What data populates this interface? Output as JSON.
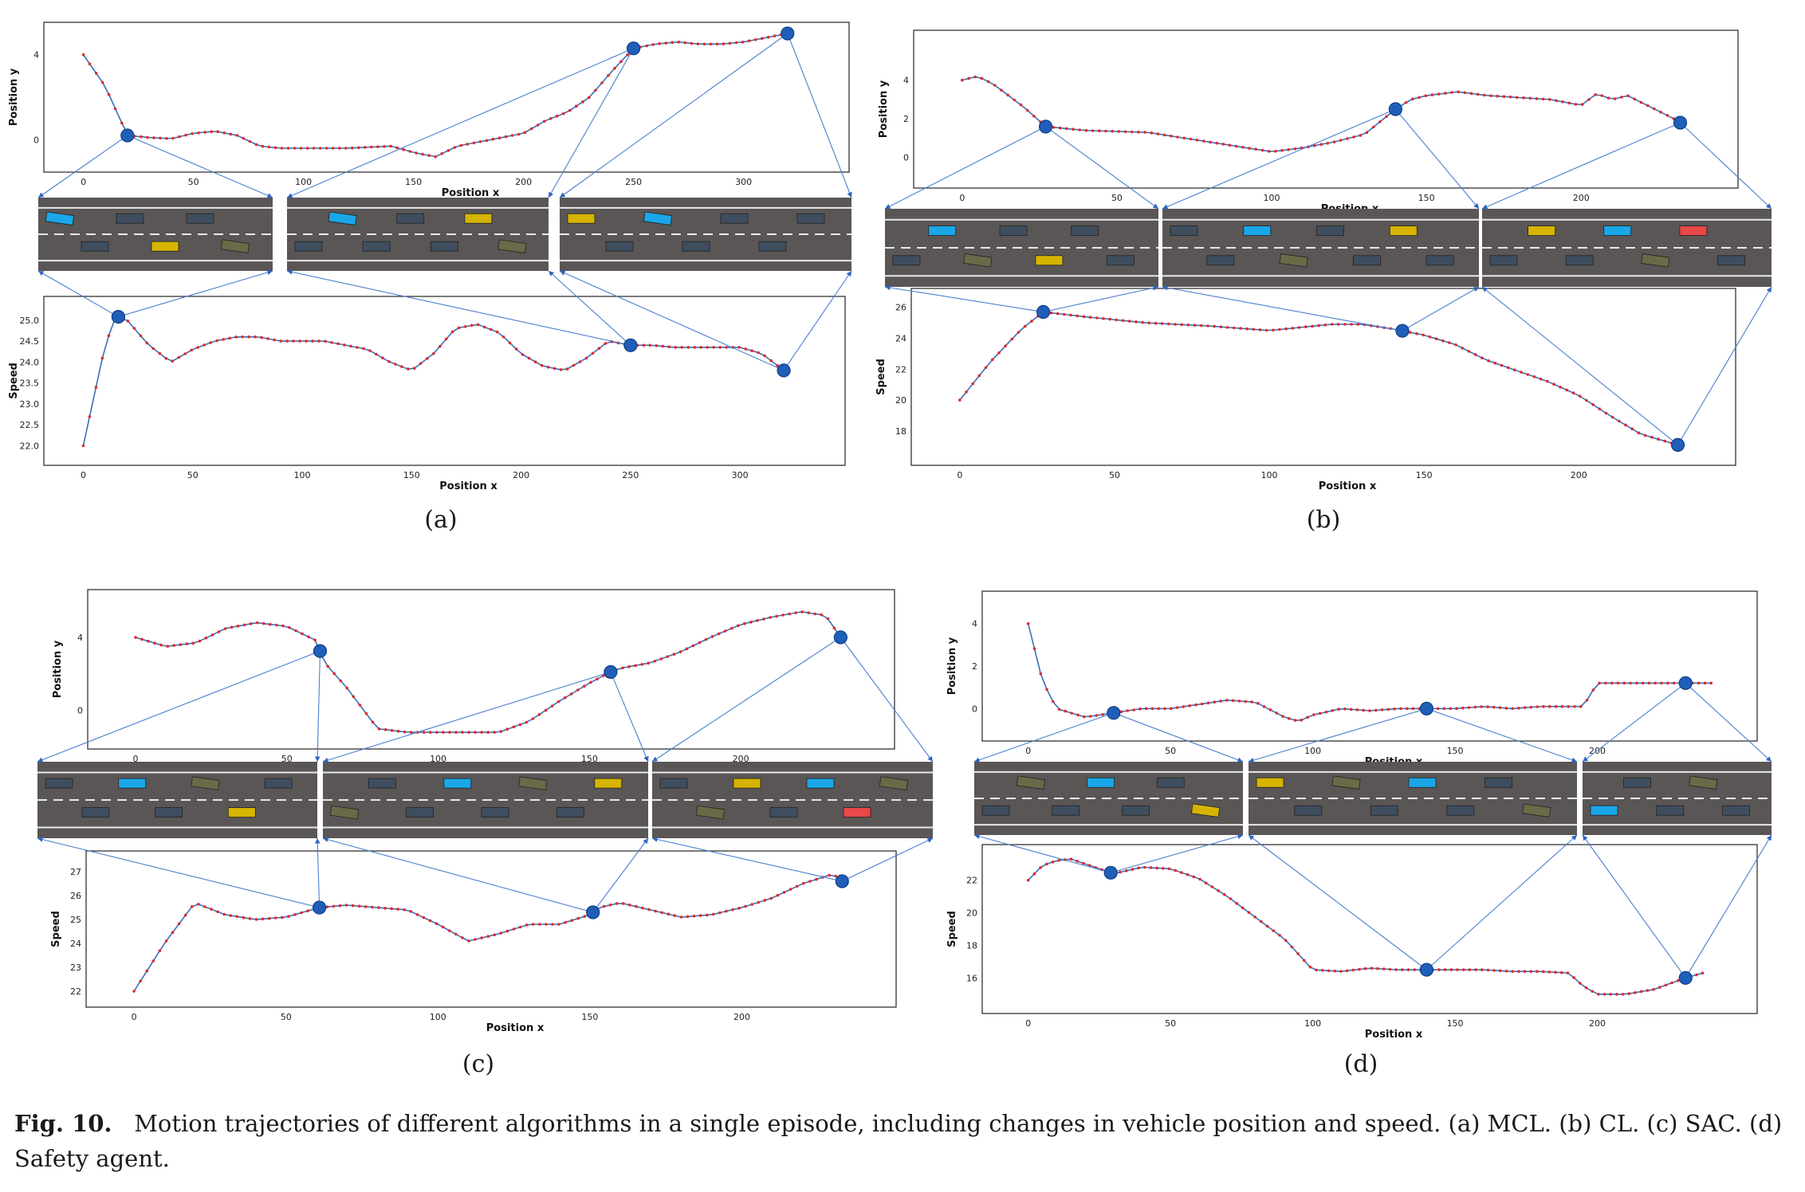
{
  "figure": {
    "caption_label": "Fig. 10.",
    "caption_text": "Motion trajectories of different algorithms in a single episode, including changes in vehicle position and speed. (a) MCL. (b) CL. (c) SAC. (d) Safety agent.",
    "colors": {
      "trajectory_line": "#3b6fb6",
      "trajectory_marker": "#e02a2a",
      "keypoint": "#1f5fb8",
      "road": "#5a5656",
      "ego_vehicle": "#1aa7e8",
      "other_vehicle": "#3f4e5e",
      "highlight_vehicle": "#d6b400",
      "collision_vehicle": "#e84848"
    }
  },
  "chart_data": [
    {
      "panel": "(a)",
      "type": "line",
      "position_plot": {
        "xlabel": "Position x",
        "ylabel": "Position y",
        "xlim": [
          -10,
          340
        ],
        "ylim": [
          -1,
          5
        ],
        "xticks": [
          0,
          50,
          100,
          150,
          200,
          250,
          300
        ],
        "yticks": [
          0,
          4
        ],
        "x": [
          0,
          10,
          20,
          30,
          40,
          50,
          60,
          70,
          80,
          90,
          100,
          110,
          120,
          130,
          140,
          150,
          160,
          170,
          180,
          190,
          200,
          210,
          220,
          230,
          240,
          250,
          260,
          270,
          280,
          290,
          300,
          310,
          320
        ],
        "y": [
          4,
          2.5,
          0.2,
          0.1,
          0.05,
          0.3,
          0.4,
          0.2,
          -0.3,
          -0.4,
          -0.4,
          -0.4,
          -0.4,
          -0.35,
          -0.3,
          -0.6,
          -0.8,
          -0.3,
          -0.1,
          0.1,
          0.3,
          0.9,
          1.3,
          2.0,
          3.2,
          4.3,
          4.5,
          4.6,
          4.5,
          4.5,
          4.6,
          4.8,
          5.0
        ],
        "keypoints_x": [
          20,
          250,
          320
        ]
      },
      "speed_plot": {
        "xlabel": "Position x",
        "ylabel": "Speed",
        "xlim": [
          -10,
          340
        ],
        "ylim": [
          21.8,
          25.3
        ],
        "xticks": [
          0,
          50,
          100,
          150,
          200,
          250,
          300
        ],
        "yticks": [
          22.0,
          22.5,
          23.0,
          23.5,
          24.0,
          24.5,
          25.0
        ],
        "x": [
          0,
          5,
          10,
          15,
          20,
          30,
          40,
          50,
          60,
          70,
          80,
          90,
          100,
          110,
          120,
          130,
          140,
          150,
          160,
          170,
          180,
          190,
          200,
          210,
          220,
          230,
          240,
          250,
          260,
          270,
          280,
          290,
          300,
          310,
          320
        ],
        "y": [
          22.0,
          23.2,
          24.4,
          25.1,
          25.0,
          24.4,
          24.0,
          24.3,
          24.5,
          24.6,
          24.6,
          24.5,
          24.5,
          24.5,
          24.4,
          24.3,
          24.0,
          23.8,
          24.2,
          24.8,
          24.9,
          24.7,
          24.2,
          23.9,
          23.8,
          24.1,
          24.5,
          24.4,
          24.4,
          24.35,
          24.35,
          24.35,
          24.35,
          24.2,
          23.8
        ],
        "keypoints_x": [
          16,
          250,
          320
        ]
      }
    },
    {
      "panel": "(b)",
      "type": "line",
      "position_plot": {
        "xlabel": "Position x",
        "ylabel": "Position y",
        "xlim": [
          -10,
          245
        ],
        "ylim": [
          -1,
          6
        ],
        "xticks": [
          0,
          50,
          100,
          150,
          200
        ],
        "yticks": [
          0,
          2,
          4
        ],
        "x": [
          0,
          5,
          10,
          20,
          27,
          40,
          60,
          80,
          100,
          110,
          120,
          130,
          140,
          145,
          150,
          160,
          170,
          180,
          190,
          200,
          205,
          210,
          215,
          220,
          230,
          232
        ],
        "y": [
          4.0,
          4.2,
          3.8,
          2.6,
          1.6,
          1.4,
          1.3,
          0.8,
          0.3,
          0.5,
          0.8,
          1.2,
          2.5,
          3.0,
          3.2,
          3.4,
          3.2,
          3.1,
          3.0,
          2.7,
          3.3,
          3.0,
          3.2,
          2.8,
          2.0,
          1.8
        ],
        "keypoints_x": [
          27,
          140,
          232
        ]
      },
      "speed_plot": {
        "xlabel": "Position x",
        "ylabel": "Speed",
        "xlim": [
          -10,
          245
        ],
        "ylim": [
          16.5,
          26.5
        ],
        "xticks": [
          0,
          50,
          100,
          150,
          200
        ],
        "yticks": [
          18,
          20,
          22,
          24,
          26
        ],
        "x": [
          0,
          10,
          20,
          27,
          40,
          60,
          80,
          100,
          110,
          120,
          130,
          140,
          150,
          160,
          170,
          180,
          190,
          200,
          210,
          220,
          232
        ],
        "y": [
          20,
          22.5,
          24.6,
          25.7,
          25.4,
          25.0,
          24.8,
          24.5,
          24.7,
          24.9,
          24.9,
          24.6,
          24.2,
          23.6,
          22.6,
          21.9,
          21.2,
          20.3,
          19.0,
          17.8,
          17.1
        ],
        "keypoints_x": [
          27,
          143,
          232
        ]
      }
    },
    {
      "panel": "(c)",
      "type": "line",
      "position_plot": {
        "xlabel": "Position x",
        "ylabel": "Position y",
        "xlim": [
          -10,
          245
        ],
        "ylim": [
          -1.5,
          6
        ],
        "xticks": [
          0,
          50,
          100,
          150,
          200
        ],
        "yticks": [
          0,
          4
        ],
        "x": [
          0,
          10,
          20,
          30,
          40,
          50,
          60,
          62,
          70,
          80,
          90,
          100,
          110,
          120,
          130,
          140,
          150,
          157,
          160,
          170,
          180,
          190,
          200,
          210,
          220,
          228,
          233
        ],
        "y": [
          4.0,
          3.5,
          3.7,
          4.5,
          4.8,
          4.6,
          3.8,
          2.7,
          1.2,
          -1.0,
          -1.2,
          -1.2,
          -1.2,
          -1.2,
          -0.6,
          0.5,
          1.5,
          2.1,
          2.3,
          2.6,
          3.2,
          4.0,
          4.7,
          5.1,
          5.4,
          5.2,
          4.0
        ],
        "keypoints_x": [
          61,
          157,
          233
        ]
      },
      "speed_plot": {
        "xlabel": "Position x",
        "ylabel": "Speed",
        "xlim": [
          -10,
          245
        ],
        "ylim": [
          21.8,
          27.4
        ],
        "xticks": [
          0,
          50,
          100,
          150,
          200
        ],
        "yticks": [
          22,
          23,
          24,
          25,
          26,
          27
        ],
        "x": [
          0,
          10,
          20,
          30,
          40,
          50,
          61,
          70,
          80,
          90,
          100,
          110,
          120,
          130,
          140,
          150,
          153,
          160,
          170,
          180,
          190,
          200,
          210,
          220,
          230,
          233
        ],
        "y": [
          22.0,
          24.0,
          25.7,
          25.2,
          25.0,
          25.1,
          25.5,
          25.6,
          25.5,
          25.4,
          24.8,
          24.1,
          24.4,
          24.8,
          24.8,
          25.2,
          25.5,
          25.7,
          25.4,
          25.1,
          25.2,
          25.5,
          25.9,
          26.5,
          26.9,
          26.6
        ],
        "keypoints_x": [
          61,
          151,
          233
        ]
      }
    },
    {
      "panel": "(d)",
      "type": "line",
      "position_plot": {
        "xlabel": "Position x",
        "ylabel": "Position y",
        "xlim": [
          -10,
          250
        ],
        "ylim": [
          -1,
          5
        ],
        "xticks": [
          0,
          50,
          100,
          150,
          200
        ],
        "yticks": [
          0,
          2,
          4
        ],
        "x": [
          0,
          5,
          10,
          20,
          30,
          40,
          50,
          60,
          70,
          80,
          90,
          95,
          100,
          110,
          120,
          130,
          140,
          150,
          160,
          170,
          180,
          190,
          195,
          200,
          210,
          220,
          231,
          240
        ],
        "y": [
          4.0,
          1.3,
          0.0,
          -0.4,
          -0.2,
          0.0,
          0.0,
          0.2,
          0.4,
          0.3,
          -0.4,
          -0.6,
          -0.3,
          0.0,
          -0.1,
          0.0,
          0.0,
          0.0,
          0.1,
          0.0,
          0.1,
          0.1,
          0.1,
          1.2,
          1.2,
          1.2,
          1.2,
          1.2
        ],
        "keypoints_x": [
          30,
          140,
          231
        ]
      },
      "speed_plot": {
        "xlabel": "Position x",
        "ylabel": "Speed",
        "xlim": [
          -10,
          250
        ],
        "ylim": [
          14.5,
          23.5
        ],
        "xticks": [
          0,
          50,
          100,
          150,
          200
        ],
        "yticks": [
          16,
          18,
          20,
          22
        ],
        "x": [
          0,
          5,
          10,
          15,
          20,
          30,
          40,
          50,
          60,
          70,
          80,
          90,
          100,
          110,
          120,
          130,
          140,
          150,
          160,
          170,
          180,
          190,
          195,
          200,
          210,
          220,
          231,
          237
        ],
        "y": [
          22.0,
          22.9,
          23.2,
          23.3,
          23.0,
          22.4,
          22.8,
          22.7,
          22.1,
          21.0,
          19.7,
          18.4,
          16.5,
          16.4,
          16.6,
          16.5,
          16.5,
          16.5,
          16.5,
          16.4,
          16.4,
          16.3,
          15.5,
          15.0,
          15.0,
          15.3,
          16.0,
          16.3
        ],
        "keypoints_x": [
          29,
          140,
          231
        ]
      }
    }
  ]
}
